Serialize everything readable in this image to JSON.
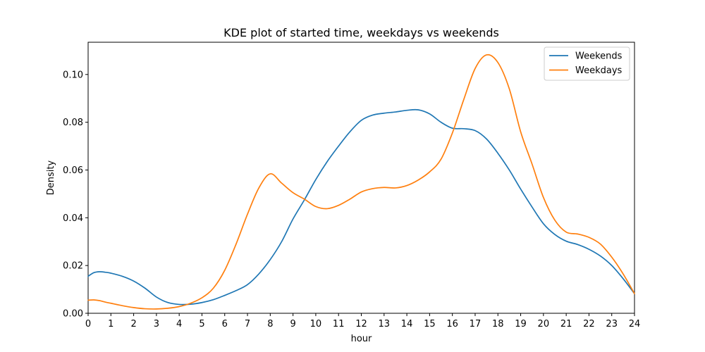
{
  "chart_data": {
    "type": "line",
    "title": "KDE plot of started time, weekdays vs weekends",
    "xlabel": "hour",
    "ylabel": "Density",
    "xlim": [
      0,
      24
    ],
    "ylim": [
      0,
      0.1135
    ],
    "x_ticks": [
      0,
      1,
      2,
      3,
      4,
      5,
      6,
      7,
      8,
      9,
      10,
      11,
      12,
      13,
      14,
      15,
      16,
      17,
      18,
      19,
      20,
      21,
      22,
      23,
      24
    ],
    "y_ticks": [
      0.0,
      0.02,
      0.04,
      0.06,
      0.08,
      0.1
    ],
    "y_tick_labels": [
      "0.00",
      "0.02",
      "0.04",
      "0.06",
      "0.08",
      "0.10"
    ],
    "grid": false,
    "legend_position": "top-right",
    "series": [
      {
        "name": "Weekends",
        "color": "#1f77b4",
        "x": [
          0,
          0.25,
          0.5,
          0.75,
          1,
          1.5,
          2,
          2.5,
          3,
          3.5,
          4,
          4.5,
          5,
          5.5,
          6,
          6.5,
          7,
          7.5,
          8,
          8.5,
          9,
          9.5,
          10,
          10.5,
          11,
          11.5,
          12,
          12.5,
          13,
          13.5,
          14,
          14.5,
          15,
          15.5,
          16,
          16.5,
          17,
          17.5,
          18,
          18.5,
          19,
          19.5,
          20,
          20.5,
          21,
          21.5,
          22,
          22.5,
          23,
          23.5,
          24
        ],
        "y": [
          0.0155,
          0.017,
          0.0174,
          0.0172,
          0.0168,
          0.0155,
          0.0135,
          0.0105,
          0.0068,
          0.0045,
          0.0037,
          0.0038,
          0.0045,
          0.0057,
          0.0075,
          0.0095,
          0.012,
          0.0165,
          0.0225,
          0.03,
          0.0395,
          0.0475,
          0.056,
          0.0635,
          0.07,
          0.076,
          0.0808,
          0.083,
          0.0838,
          0.0843,
          0.085,
          0.0852,
          0.0835,
          0.08,
          0.0775,
          0.0773,
          0.0765,
          0.073,
          0.067,
          0.06,
          0.052,
          0.0445,
          0.0375,
          0.033,
          0.0302,
          0.0288,
          0.0268,
          0.024,
          0.02,
          0.0145,
          0.0082
        ]
      },
      {
        "name": "Weekdays",
        "color": "#ff7f0e",
        "x": [
          0,
          0.25,
          0.5,
          0.75,
          1,
          1.5,
          2,
          2.5,
          3,
          3.5,
          4,
          4.5,
          5,
          5.5,
          6,
          6.5,
          7,
          7.5,
          8,
          8.5,
          9,
          9.5,
          10,
          10.5,
          11,
          11.5,
          12,
          12.5,
          13,
          13.5,
          14,
          14.5,
          15,
          15.5,
          16,
          16.5,
          17,
          17.5,
          18,
          18.5,
          19,
          19.5,
          20,
          20.5,
          21,
          21.5,
          22,
          22.5,
          23,
          23.5,
          24
        ],
        "y": [
          0.0055,
          0.0056,
          0.0053,
          0.0047,
          0.0042,
          0.0032,
          0.0024,
          0.0019,
          0.0018,
          0.0021,
          0.0028,
          0.0042,
          0.0065,
          0.0105,
          0.018,
          0.029,
          0.0415,
          0.0525,
          0.0584,
          0.0545,
          0.0505,
          0.0478,
          0.0447,
          0.0438,
          0.0452,
          0.0478,
          0.0508,
          0.0522,
          0.0527,
          0.0525,
          0.0535,
          0.0558,
          0.0592,
          0.0645,
          0.0755,
          0.0895,
          0.1025,
          0.1082,
          0.105,
          0.094,
          0.076,
          0.0625,
          0.0485,
          0.039,
          0.034,
          0.0332,
          0.0318,
          0.029,
          0.0235,
          0.0165,
          0.0082
        ]
      }
    ]
  }
}
